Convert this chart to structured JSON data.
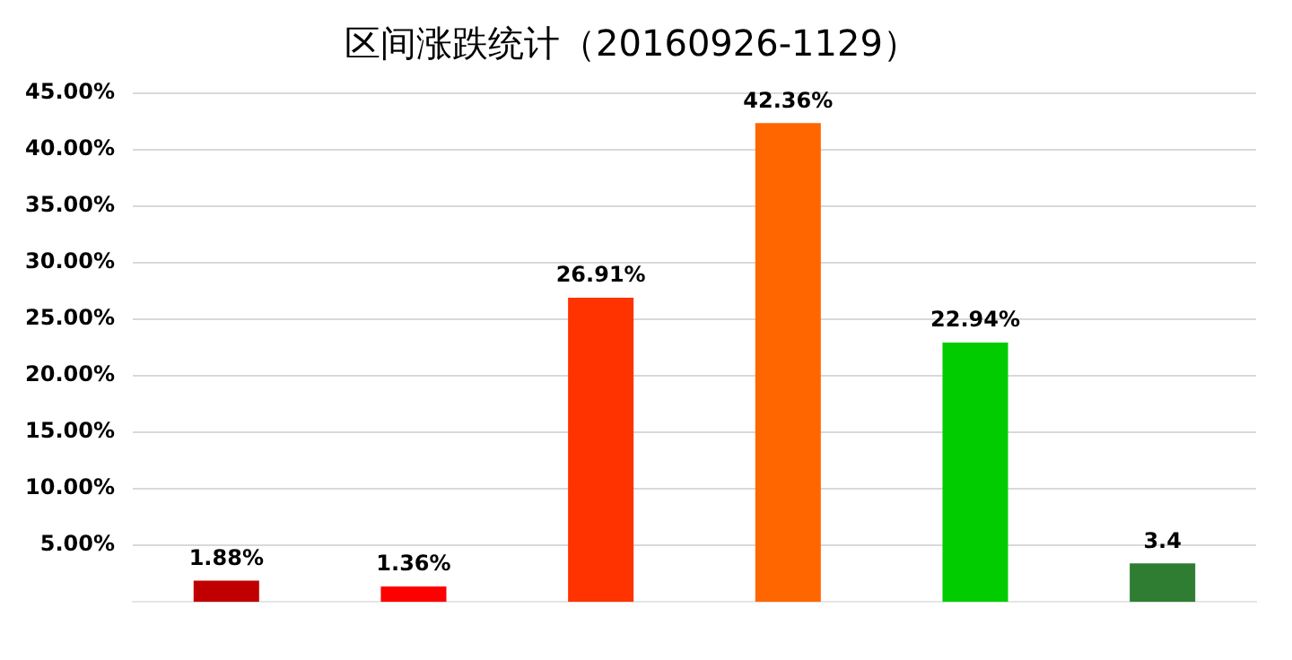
{
  "chart_data": {
    "type": "bar",
    "title": "区间涨跌统计（20160926-1129）",
    "categories": [
      null,
      null,
      null,
      null,
      null,
      null
    ],
    "values": [
      1.88,
      1.36,
      26.91,
      42.36,
      22.94,
      3.4
    ],
    "colors": [
      "#c00000",
      "#ff0000",
      "#ff3300",
      "#ff6600",
      "#00cc00",
      "#2e7d32"
    ],
    "value_labels": [
      "1.88%",
      "1.36%",
      "26.91%",
      "42.36%",
      "22.94%",
      "3.4"
    ],
    "ylim": [
      0,
      45
    ],
    "yticks": [
      {
        "value": 5,
        "label": "5.00%"
      },
      {
        "value": 10,
        "label": "10.00%"
      },
      {
        "value": 15,
        "label": "15.00%"
      },
      {
        "value": 20,
        "label": "20.00%"
      },
      {
        "value": 25,
        "label": "25.00%"
      },
      {
        "value": 30,
        "label": "30.00%"
      },
      {
        "value": 35,
        "label": "35.00%"
      },
      {
        "value": 40,
        "label": "40.00%"
      },
      {
        "value": 45,
        "label": "45.00%"
      }
    ],
    "grid": "y",
    "legend": false
  }
}
